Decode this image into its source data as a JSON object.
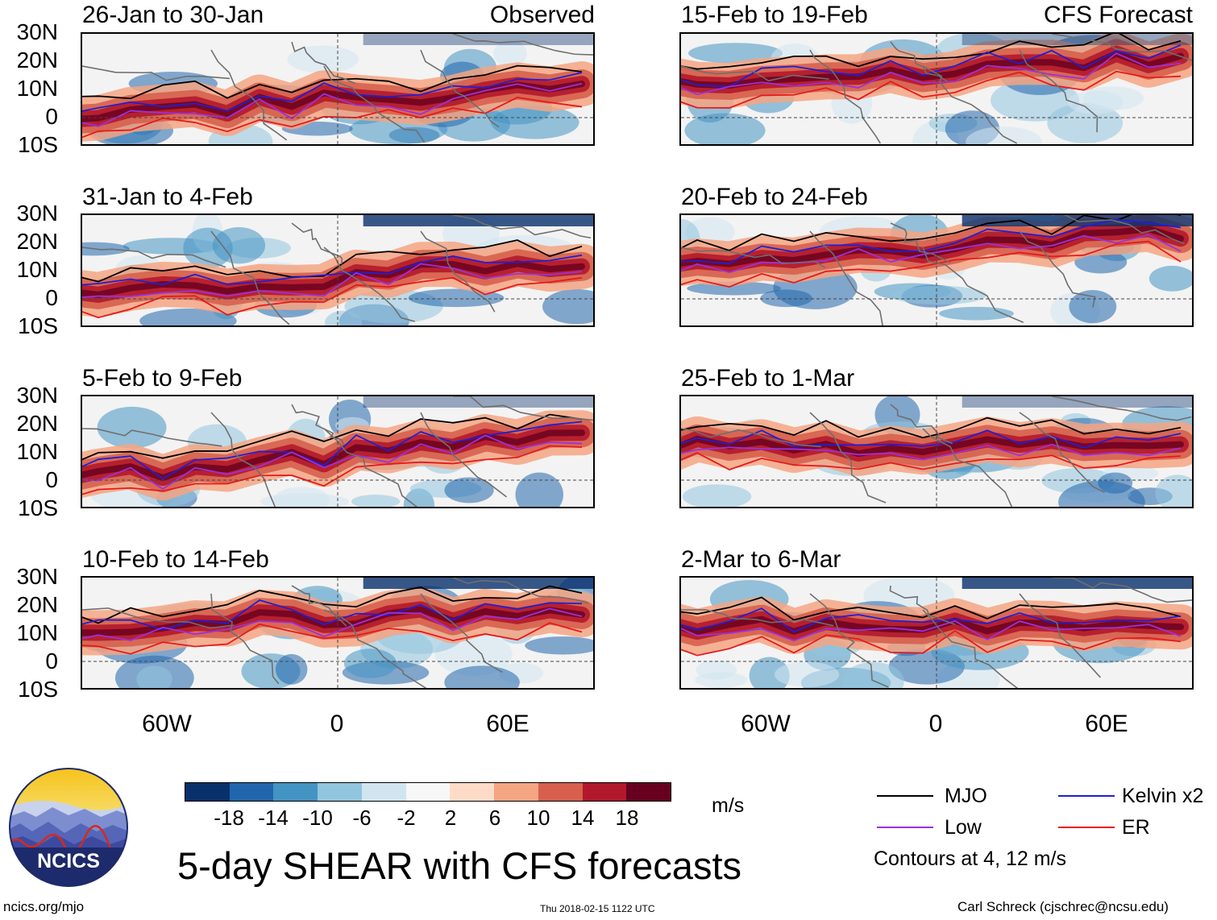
{
  "headers": {
    "observed": "Observed",
    "forecast": "CFS Forecast"
  },
  "latitude_labels": [
    "30N",
    "20N",
    "10N",
    "0",
    "10S"
  ],
  "longitude_labels": [
    "60W",
    "0",
    "60E"
  ],
  "panels": [
    {
      "title": "26-Jan to 30-Jan",
      "source": "observed"
    },
    {
      "title": "31-Jan to 4-Feb",
      "source": "observed"
    },
    {
      "title": "5-Feb to 9-Feb",
      "source": "observed"
    },
    {
      "title": "10-Feb to 14-Feb",
      "source": "observed"
    },
    {
      "title": "15-Feb to 19-Feb",
      "source": "forecast"
    },
    {
      "title": "20-Feb to 24-Feb",
      "source": "forecast"
    },
    {
      "title": "25-Feb to 1-Mar",
      "source": "forecast"
    },
    {
      "title": "2-Mar to 6-Mar",
      "source": "forecast"
    }
  ],
  "colorbar": {
    "labels": [
      "-18",
      "-14",
      "-10",
      "-6",
      "-2",
      "2",
      "6",
      "10",
      "14",
      "18"
    ],
    "colors": [
      "#08306b",
      "#2166ac",
      "#4393c3",
      "#92c5de",
      "#d1e5f0",
      "#f7f7f7",
      "#fddbc7",
      "#f4a582",
      "#d6604d",
      "#b2182b",
      "#67001f"
    ],
    "units": "m/s"
  },
  "legend": {
    "items": [
      {
        "label": "MJO",
        "color": "#000000"
      },
      {
        "label": "Kelvin x2",
        "color": "#1f1fd6"
      },
      {
        "label": "Low",
        "color": "#9b30e0"
      },
      {
        "label": "ER",
        "color": "#e8191b"
      }
    ],
    "note": "Contours at 4, 12 m/s"
  },
  "logo": {
    "text": "NCICS"
  },
  "main_title": "5-day SHEAR with CFS forecasts",
  "footer": {
    "website": "ncics.org/mjo",
    "timestamp": "Thu 2018-02-15 1122 UTC",
    "author": "Carl Schreck (cjschrec@ncsu.edu)"
  }
}
